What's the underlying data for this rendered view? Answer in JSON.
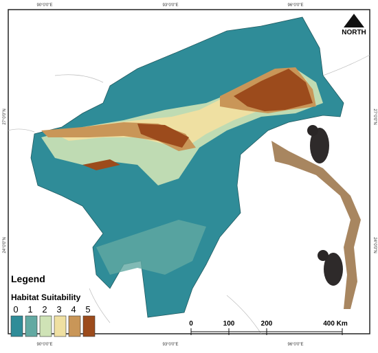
{
  "map": {
    "coords_top": [
      "90°0'0\"E",
      "93°0'0\"E",
      "96°0'0\"E"
    ],
    "coords_bottom": [
      "90°0'0\"E",
      "93°0'0\"E",
      "96°0'0\"E"
    ],
    "coords_left": [
      "27°0'0\"N",
      "24°0'0\"N"
    ],
    "coords_right": [
      "27°0'0\"N",
      "24°0'0\"N"
    ],
    "north": "NORTH",
    "legend": {
      "title": "Legend",
      "subtitle": "Habitat Suitability",
      "classes": [
        {
          "label": "0",
          "color": "#2f8c98"
        },
        {
          "label": "1",
          "color": "#62a9a2"
        },
        {
          "label": "2",
          "color": "#cfe3b6"
        },
        {
          "label": "3",
          "color": "#efe0a2"
        },
        {
          "label": "4",
          "color": "#c99658"
        },
        {
          "label": "5",
          "color": "#9c4b1c"
        }
      ]
    },
    "scale": {
      "ticks": [
        0,
        100,
        200,
        {
          "value": 400,
          "label": "400 Km"
        }
      ],
      "range": [
        0,
        400
      ]
    }
  }
}
